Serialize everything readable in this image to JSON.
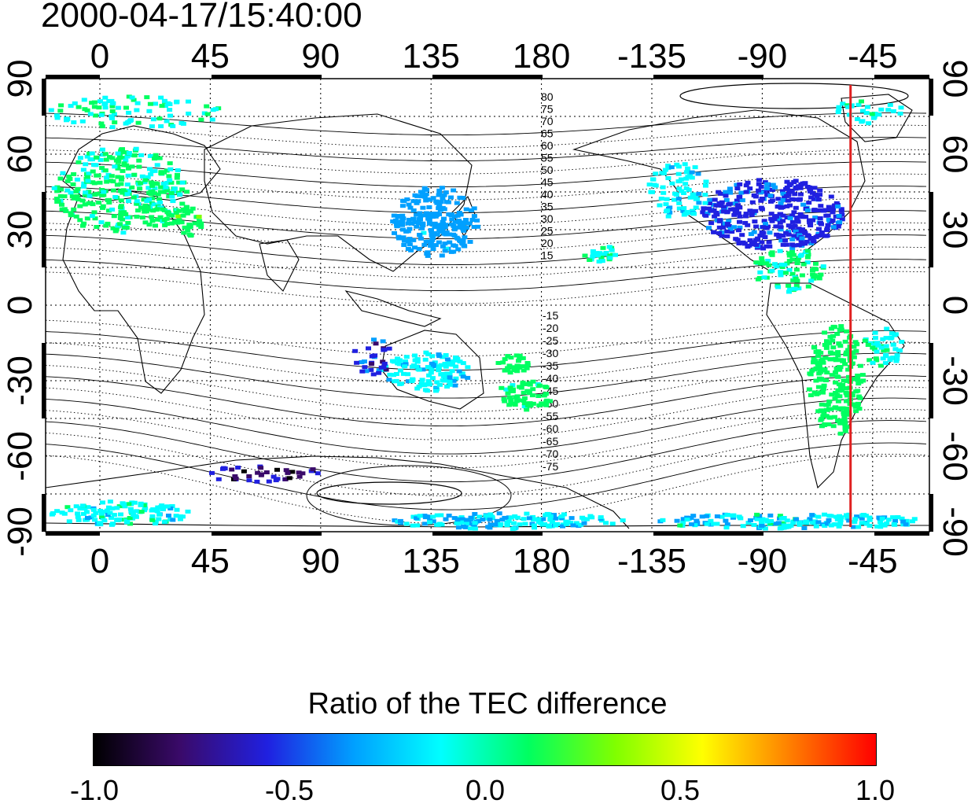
{
  "title": "2000-04-17/15:40:00",
  "map": {
    "x_tick_labels": [
      "0",
      "45",
      "90",
      "135",
      "180",
      "-135",
      "-90",
      "-45"
    ],
    "y_tick_labels": [
      "90",
      "60",
      "30",
      "0",
      "-30",
      "-60",
      "-90"
    ],
    "contour_labels_north": [
      "80",
      "75",
      "70",
      "65",
      "60",
      "55",
      "50",
      "45",
      "40",
      "35",
      "30",
      "25",
      "20",
      "15"
    ],
    "contour_labels_south": [
      "-15",
      "-20",
      "-25",
      "-30",
      "-35",
      "-40",
      "-45",
      "-50",
      "-55",
      "-60",
      "-65",
      "-70",
      "-75"
    ],
    "terminator_longitude": -54,
    "terminator_color": "#e02020"
  },
  "colorbar": {
    "title": "Ratio of the TEC difference",
    "tick_labels": [
      "-1.0",
      "-0.5",
      "0.0",
      "0.5",
      "1.0"
    ],
    "range": [
      -1.0,
      1.0
    ],
    "colors": [
      "#000000",
      "#3a0a6a",
      "#2020e0",
      "#00a0ff",
      "#00ffff",
      "#00ff60",
      "#80ff00",
      "#ffff00",
      "#ff8000",
      "#ff0000"
    ]
  }
}
